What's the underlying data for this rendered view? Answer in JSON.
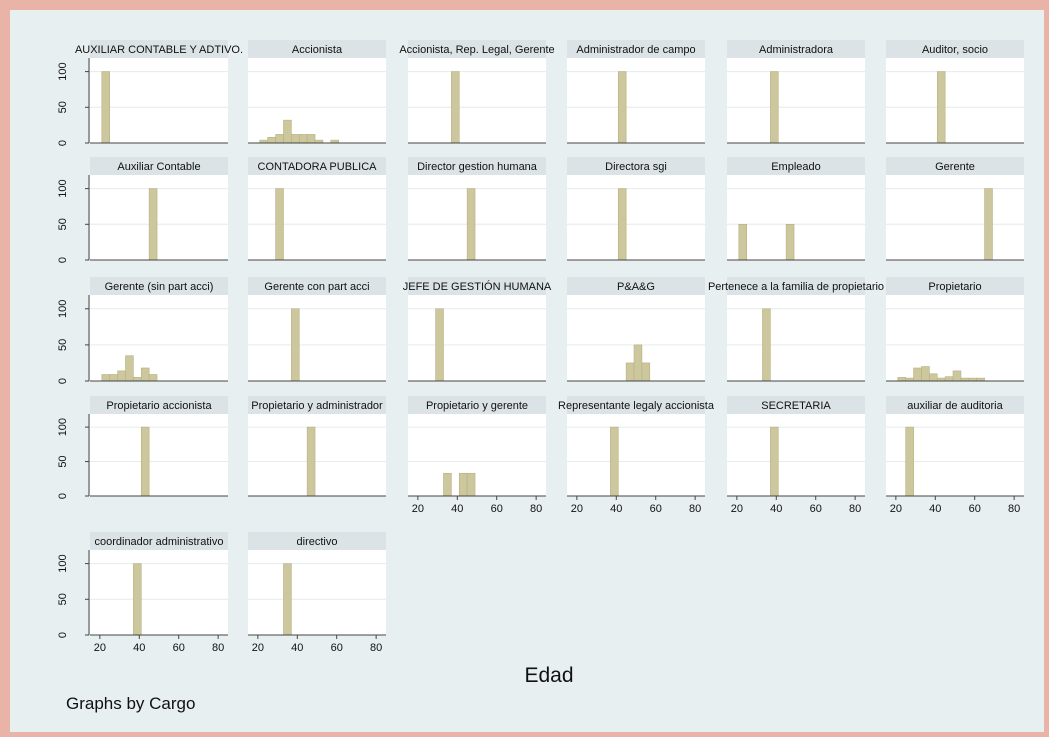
{
  "chart_data": {
    "type": "bar",
    "subtype": "histogram-by-group",
    "xlabel": "Edad",
    "ylabel": "",
    "note": "Graphs by Cargo",
    "xticks": [
      20,
      40,
      60,
      80
    ],
    "yticks": [
      0,
      50,
      100
    ],
    "xlim": [
      15,
      85
    ],
    "ylim": [
      0,
      110
    ],
    "bin_width": 4,
    "colors": {
      "bar": "#cdc79d",
      "bar_edge": "#b7b07f",
      "strip": "#dbe3e6",
      "grid": "#e3ecee"
    },
    "panels": [
      {
        "label": "AUXILIAR CONTABLE Y ADTIVO.",
        "bars": [
          {
            "x": 23,
            "y": 100
          }
        ]
      },
      {
        "label": "Accionista",
        "bars": [
          {
            "x": 23,
            "y": 4
          },
          {
            "x": 27,
            "y": 8
          },
          {
            "x": 31,
            "y": 12
          },
          {
            "x": 35,
            "y": 32
          },
          {
            "x": 39,
            "y": 12
          },
          {
            "x": 43,
            "y": 12
          },
          {
            "x": 47,
            "y": 12
          },
          {
            "x": 51,
            "y": 4
          },
          {
            "x": 59,
            "y": 4
          }
        ]
      },
      {
        "label": "Accionista, Rep. Legal, Gerente",
        "bars": [
          {
            "x": 39,
            "y": 100
          }
        ]
      },
      {
        "label": "Administrador de campo",
        "bars": [
          {
            "x": 43,
            "y": 100
          }
        ]
      },
      {
        "label": "Administradora",
        "bars": [
          {
            "x": 39,
            "y": 100
          }
        ]
      },
      {
        "label": "Auditor, socio",
        "bars": [
          {
            "x": 43,
            "y": 100
          }
        ]
      },
      {
        "label": "Auxiliar Contable",
        "bars": [
          {
            "x": 47,
            "y": 100
          }
        ]
      },
      {
        "label": "CONTADORA PUBLICA",
        "bars": [
          {
            "x": 31,
            "y": 100
          }
        ]
      },
      {
        "label": "Director gestion humana",
        "bars": [
          {
            "x": 47,
            "y": 100
          }
        ]
      },
      {
        "label": "Directora sgi",
        "bars": [
          {
            "x": 43,
            "y": 100
          }
        ]
      },
      {
        "label": "Empleado",
        "bars": [
          {
            "x": 23,
            "y": 50
          },
          {
            "x": 47,
            "y": 50
          }
        ]
      },
      {
        "label": "Gerente",
        "bars": [
          {
            "x": 67,
            "y": 100
          }
        ]
      },
      {
        "label": "Gerente (sin part acci)",
        "bars": [
          {
            "x": 23,
            "y": 9
          },
          {
            "x": 27,
            "y": 9
          },
          {
            "x": 31,
            "y": 14
          },
          {
            "x": 35,
            "y": 35
          },
          {
            "x": 39,
            "y": 5
          },
          {
            "x": 43,
            "y": 18
          },
          {
            "x": 47,
            "y": 9
          }
        ]
      },
      {
        "label": "Gerente con part acci",
        "bars": [
          {
            "x": 39,
            "y": 100
          }
        ]
      },
      {
        "label": "JEFE DE GESTIÓN HUMANA",
        "bars": [
          {
            "x": 31,
            "y": 100
          }
        ]
      },
      {
        "label": "P&A&G",
        "bars": [
          {
            "x": 47,
            "y": 25
          },
          {
            "x": 51,
            "y": 50
          },
          {
            "x": 55,
            "y": 25
          }
        ]
      },
      {
        "label": "Pertenece a la familia de propietario",
        "bars": [
          {
            "x": 35,
            "y": 100
          }
        ]
      },
      {
        "label": "Propietario",
        "bars": [
          {
            "x": 23,
            "y": 5
          },
          {
            "x": 27,
            "y": 4
          },
          {
            "x": 31,
            "y": 18
          },
          {
            "x": 35,
            "y": 20
          },
          {
            "x": 39,
            "y": 10
          },
          {
            "x": 43,
            "y": 4
          },
          {
            "x": 47,
            "y": 6
          },
          {
            "x": 51,
            "y": 14
          },
          {
            "x": 55,
            "y": 4
          },
          {
            "x": 59,
            "y": 4
          },
          {
            "x": 63,
            "y": 4
          }
        ]
      },
      {
        "label": "Propietario accionista",
        "bars": [
          {
            "x": 43,
            "y": 100
          }
        ]
      },
      {
        "label": "Propietario y administrador",
        "bars": [
          {
            "x": 47,
            "y": 100
          }
        ]
      },
      {
        "label": "Propietario y gerente",
        "bars": [
          {
            "x": 35,
            "y": 33
          },
          {
            "x": 43,
            "y": 33
          },
          {
            "x": 47,
            "y": 33
          }
        ]
      },
      {
        "label": "Representante legaly accionista",
        "bars": [
          {
            "x": 39,
            "y": 100
          }
        ]
      },
      {
        "label": "SECRETARIA",
        "bars": [
          {
            "x": 39,
            "y": 100
          }
        ]
      },
      {
        "label": "auxiliar de auditoria",
        "bars": [
          {
            "x": 27,
            "y": 100
          }
        ]
      },
      {
        "label": "coordinador administrativo",
        "bars": [
          {
            "x": 39,
            "y": 100
          }
        ]
      },
      {
        "label": "directivo",
        "bars": [
          {
            "x": 35,
            "y": 100
          }
        ]
      }
    ]
  }
}
